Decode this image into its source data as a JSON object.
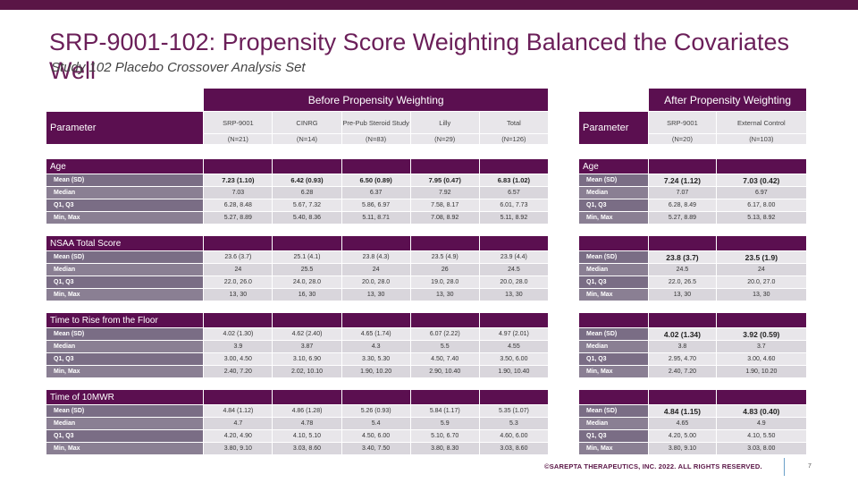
{
  "title": "SRP-9001-102: Propensity Score Weighting Balanced the Covariates Well",
  "subtitle": "Study 102 Placebo Crossover Analysis Set",
  "left_table": {
    "group_header": "Before Propensity Weighting",
    "param_label": "Parameter",
    "columns": [
      "SRP-9001",
      "CINRG",
      "Pre-Pub Steroid Study",
      "Lilly",
      "Total"
    ],
    "ns": [
      "(N=21)",
      "(N=14)",
      "(N=83)",
      "(N=29)",
      "(N=126)"
    ],
    "sections": [
      {
        "name": "Age",
        "rows": [
          {
            "label": "Mean (SD)",
            "values": [
              "7.23 (1.10)",
              "6.42 (0.93)",
              "6.50 (0.89)",
              "7.95 (0.47)",
              "6.83 (1.02)"
            ]
          },
          {
            "label": "Median",
            "values": [
              "7.03",
              "6.28",
              "6.37",
              "7.92",
              "6.57"
            ]
          },
          {
            "label": "Q1, Q3",
            "values": [
              "6.28, 8.48",
              "5.67, 7.32",
              "5.86, 6.97",
              "7.58, 8.17",
              "6.01, 7.73"
            ]
          },
          {
            "label": "Min, Max",
            "values": [
              "5.27, 8.89",
              "5.40, 8.36",
              "5.11, 8.71",
              "7.08, 8.92",
              "5.11, 8.92"
            ]
          }
        ]
      },
      {
        "name": "NSAA Total Score",
        "rows": [
          {
            "label": "Mean (SD)",
            "values": [
              "23.6 (3.7)",
              "25.1 (4.1)",
              "23.8 (4.3)",
              "23.5 (4.9)",
              "23.9 (4.4)"
            ]
          },
          {
            "label": "Median",
            "values": [
              "24",
              "25.5",
              "24",
              "26",
              "24.5"
            ]
          },
          {
            "label": "Q1, Q3",
            "values": [
              "22.0, 26.0",
              "24.0, 28.0",
              "20.0, 28.0",
              "19.0, 28.0",
              "20.0, 28.0"
            ]
          },
          {
            "label": "Min, Max",
            "values": [
              "13, 30",
              "16, 30",
              "13, 30",
              "13, 30",
              "13, 30"
            ]
          }
        ]
      },
      {
        "name": "Time to Rise from the Floor",
        "rows": [
          {
            "label": "Mean (SD)",
            "values": [
              "4.02 (1.30)",
              "4.62 (2.40)",
              "4.65 (1.74)",
              "6.07 (2.22)",
              "4.97 (2.01)"
            ]
          },
          {
            "label": "Median",
            "values": [
              "3.9",
              "3.87",
              "4.3",
              "5.5",
              "4.55"
            ]
          },
          {
            "label": "Q1, Q3",
            "values": [
              "3.00, 4.50",
              "3.10, 6.90",
              "3.30, 5.30",
              "4.50, 7.40",
              "3.50, 6.00"
            ]
          },
          {
            "label": "Min, Max",
            "values": [
              "2.40, 7.20",
              "2.02, 10.10",
              "1.90, 10.20",
              "2.90, 10.40",
              "1.90, 10.40"
            ]
          }
        ]
      },
      {
        "name": "Time of 10MWR",
        "rows": [
          {
            "label": "Mean (SD)",
            "values": [
              "4.84 (1.12)",
              "4.86 (1.28)",
              "5.26 (0.93)",
              "5.84 (1.17)",
              "5.35 (1.07)"
            ]
          },
          {
            "label": "Median",
            "values": [
              "4.7",
              "4.78",
              "5.4",
              "5.9",
              "5.3"
            ]
          },
          {
            "label": "Q1, Q3",
            "values": [
              "4.20, 4.90",
              "4.10, 5.10",
              "4.50, 6.00",
              "5.10, 6.70",
              "4.60, 6.00"
            ]
          },
          {
            "label": "Min, Max",
            "values": [
              "3.80, 9.10",
              "3.03, 8.60",
              "3.40, 7.50",
              "3.80, 8.30",
              "3.03, 8.60"
            ]
          }
        ]
      }
    ]
  },
  "right_table": {
    "group_header": "After Propensity Weighting",
    "param_label": "Parameter",
    "columns": [
      "SRP-9001",
      "External Control"
    ],
    "ns": [
      "(N=20)",
      "(N=103)"
    ],
    "sections": [
      {
        "name": "Age",
        "rows": [
          {
            "label": "Mean (SD)",
            "values": [
              "7.24 (1.12)",
              "7.03 (0.42)"
            ]
          },
          {
            "label": "Median",
            "values": [
              "7.07",
              "6.97"
            ]
          },
          {
            "label": "Q1, Q3",
            "values": [
              "6.28, 8.49",
              "6.17, 8.00"
            ]
          },
          {
            "label": "Min, Max",
            "values": [
              "5.27, 8.89",
              "5.13, 8.92"
            ]
          }
        ]
      },
      {
        "name": "",
        "rows": [
          {
            "label": "Mean (SD)",
            "values": [
              "23.8 (3.7)",
              "23.5 (1.9)"
            ]
          },
          {
            "label": "Median",
            "values": [
              "24.5",
              "24"
            ]
          },
          {
            "label": "Q1, Q3",
            "values": [
              "22.0, 26.5",
              "20.0, 27.0"
            ]
          },
          {
            "label": "Min, Max",
            "values": [
              "13, 30",
              "13, 30"
            ]
          }
        ]
      },
      {
        "name": "",
        "rows": [
          {
            "label": "Mean (SD)",
            "values": [
              "4.02 (1.34)",
              "3.92 (0.59)"
            ]
          },
          {
            "label": "Median",
            "values": [
              "3.8",
              "3.7"
            ]
          },
          {
            "label": "Q1, Q3",
            "values": [
              "2.95, 4.70",
              "3.00, 4.60"
            ]
          },
          {
            "label": "Min, Max",
            "values": [
              "2.40, 7.20",
              "1.90, 10.20"
            ]
          }
        ]
      },
      {
        "name": "",
        "rows": [
          {
            "label": "Mean (SD)",
            "values": [
              "4.84 (1.15)",
              "4.83 (0.40)"
            ]
          },
          {
            "label": "Median",
            "values": [
              "4.65",
              "4.9"
            ]
          },
          {
            "label": "Q1, Q3",
            "values": [
              "4.20, 5.00",
              "4.10, 5.50"
            ]
          },
          {
            "label": "Min, Max",
            "values": [
              "3.80, 9.10",
              "3.03, 8.00"
            ]
          }
        ]
      }
    ]
  },
  "footer": "©SAREPTA THERAPEUTICS, INC. 2022.  ALL RIGHTS RESERVED.",
  "page_number": "7"
}
